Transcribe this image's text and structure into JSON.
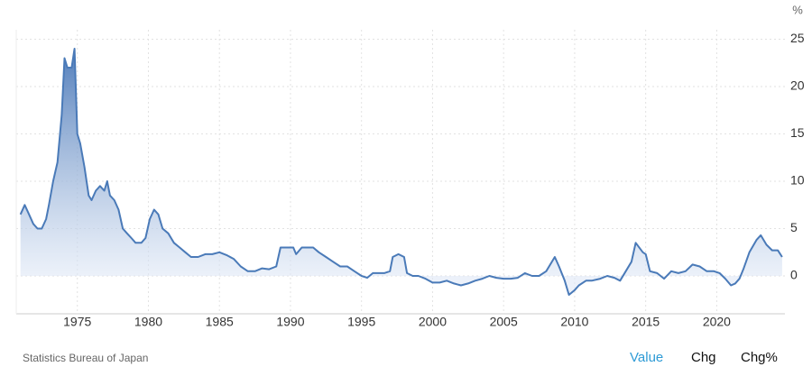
{
  "chart_data": {
    "type": "area",
    "y_unit": "%",
    "x": [
      1971.0,
      1971.3,
      1971.6,
      1971.9,
      1972.2,
      1972.5,
      1972.8,
      1973.0,
      1973.3,
      1973.6,
      1973.9,
      1974.1,
      1974.3,
      1974.6,
      1974.8,
      1975.0,
      1975.2,
      1975.5,
      1975.8,
      1976.0,
      1976.3,
      1976.6,
      1976.9,
      1977.1,
      1977.3,
      1977.6,
      1977.9,
      1978.2,
      1978.5,
      1978.8,
      1979.1,
      1979.5,
      1979.8,
      1980.1,
      1980.4,
      1980.7,
      1981.0,
      1981.4,
      1981.8,
      1982.2,
      1982.6,
      1983.0,
      1983.5,
      1984.0,
      1984.5,
      1985.0,
      1985.5,
      1986.0,
      1986.5,
      1987.0,
      1987.5,
      1988.0,
      1988.5,
      1989.0,
      1989.3,
      1989.8,
      1990.2,
      1990.4,
      1990.8,
      1991.2,
      1991.6,
      1992.0,
      1992.5,
      1993.0,
      1993.5,
      1994.0,
      1994.5,
      1995.0,
      1995.4,
      1995.8,
      1996.2,
      1996.6,
      1997.0,
      1997.2,
      1997.6,
      1998.0,
      1998.2,
      1998.6,
      1999.0,
      1999.5,
      2000.0,
      2000.5,
      2001.0,
      2001.5,
      2002.0,
      2002.5,
      2003.0,
      2003.5,
      2004.0,
      2004.5,
      2005.0,
      2005.5,
      2006.0,
      2006.5,
      2007.0,
      2007.5,
      2008.0,
      2008.6,
      2008.9,
      2009.3,
      2009.6,
      2010.0,
      2010.3,
      2010.8,
      2011.2,
      2011.8,
      2012.3,
      2012.8,
      2013.2,
      2013.6,
      2014.0,
      2014.3,
      2014.8,
      2015.0,
      2015.3,
      2015.8,
      2016.3,
      2016.8,
      2017.3,
      2017.8,
      2018.3,
      2018.8,
      2019.3,
      2019.8,
      2020.2,
      2020.6,
      2021.0,
      2021.3,
      2021.6,
      2021.9,
      2022.3,
      2022.8,
      2023.1,
      2023.5,
      2023.9,
      2024.3,
      2024.6
    ],
    "series": [
      {
        "color": "#4a7ab8",
        "values": [
          6.5,
          7.5,
          6.5,
          5.5,
          5,
          5,
          6,
          7.5,
          10,
          12,
          17,
          23,
          22,
          22,
          24,
          15,
          14,
          11.5,
          8.5,
          8,
          9,
          9.5,
          9,
          10,
          8.5,
          8,
          7,
          5,
          4.5,
          4,
          3.5,
          3.5,
          4,
          6,
          7,
          6.5,
          5,
          4.5,
          3.5,
          3,
          2.5,
          2,
          2,
          2.3,
          2.3,
          2.5,
          2.2,
          1.8,
          1,
          0.5,
          0.5,
          0.8,
          0.7,
          1,
          3,
          3,
          3,
          2.3,
          3,
          3,
          3,
          2.5,
          2,
          1.5,
          1,
          1,
          0.5,
          0,
          -0.2,
          0.3,
          0.3,
          0.3,
          0.5,
          2,
          2.3,
          2,
          0.3,
          0,
          0,
          -0.3,
          -0.7,
          -0.7,
          -0.5,
          -0.8,
          -1,
          -0.8,
          -0.5,
          -0.3,
          0,
          -0.2,
          -0.3,
          -0.3,
          -0.2,
          0.3,
          0,
          0,
          0.5,
          2,
          1,
          -0.5,
          -2,
          -1.5,
          -1,
          -0.5,
          -0.5,
          -0.3,
          0,
          -0.2,
          -0.5,
          0.5,
          1.5,
          3.5,
          2.5,
          2.3,
          0.5,
          0.3,
          -0.3,
          0.5,
          0.3,
          0.5,
          1.2,
          1,
          0.5,
          0.5,
          0.3,
          -0.3,
          -1,
          -0.8,
          -0.3,
          0.8,
          2.5,
          3.8,
          4.3,
          3.3,
          2.7,
          2.7,
          2
        ]
      }
    ],
    "xlim": [
      1970.7,
      2024.8
    ],
    "xticks": [
      1975,
      1980,
      1985,
      1990,
      1995,
      2000,
      2005,
      2010,
      2015,
      2020
    ],
    "ylim": [
      -4,
      26
    ],
    "yticks": [
      0,
      5,
      10,
      15,
      20,
      25
    ],
    "grid": true
  },
  "source": "Statistics Bureau of Japan",
  "buttons": [
    "Value",
    "Chg",
    "Chg%"
  ]
}
